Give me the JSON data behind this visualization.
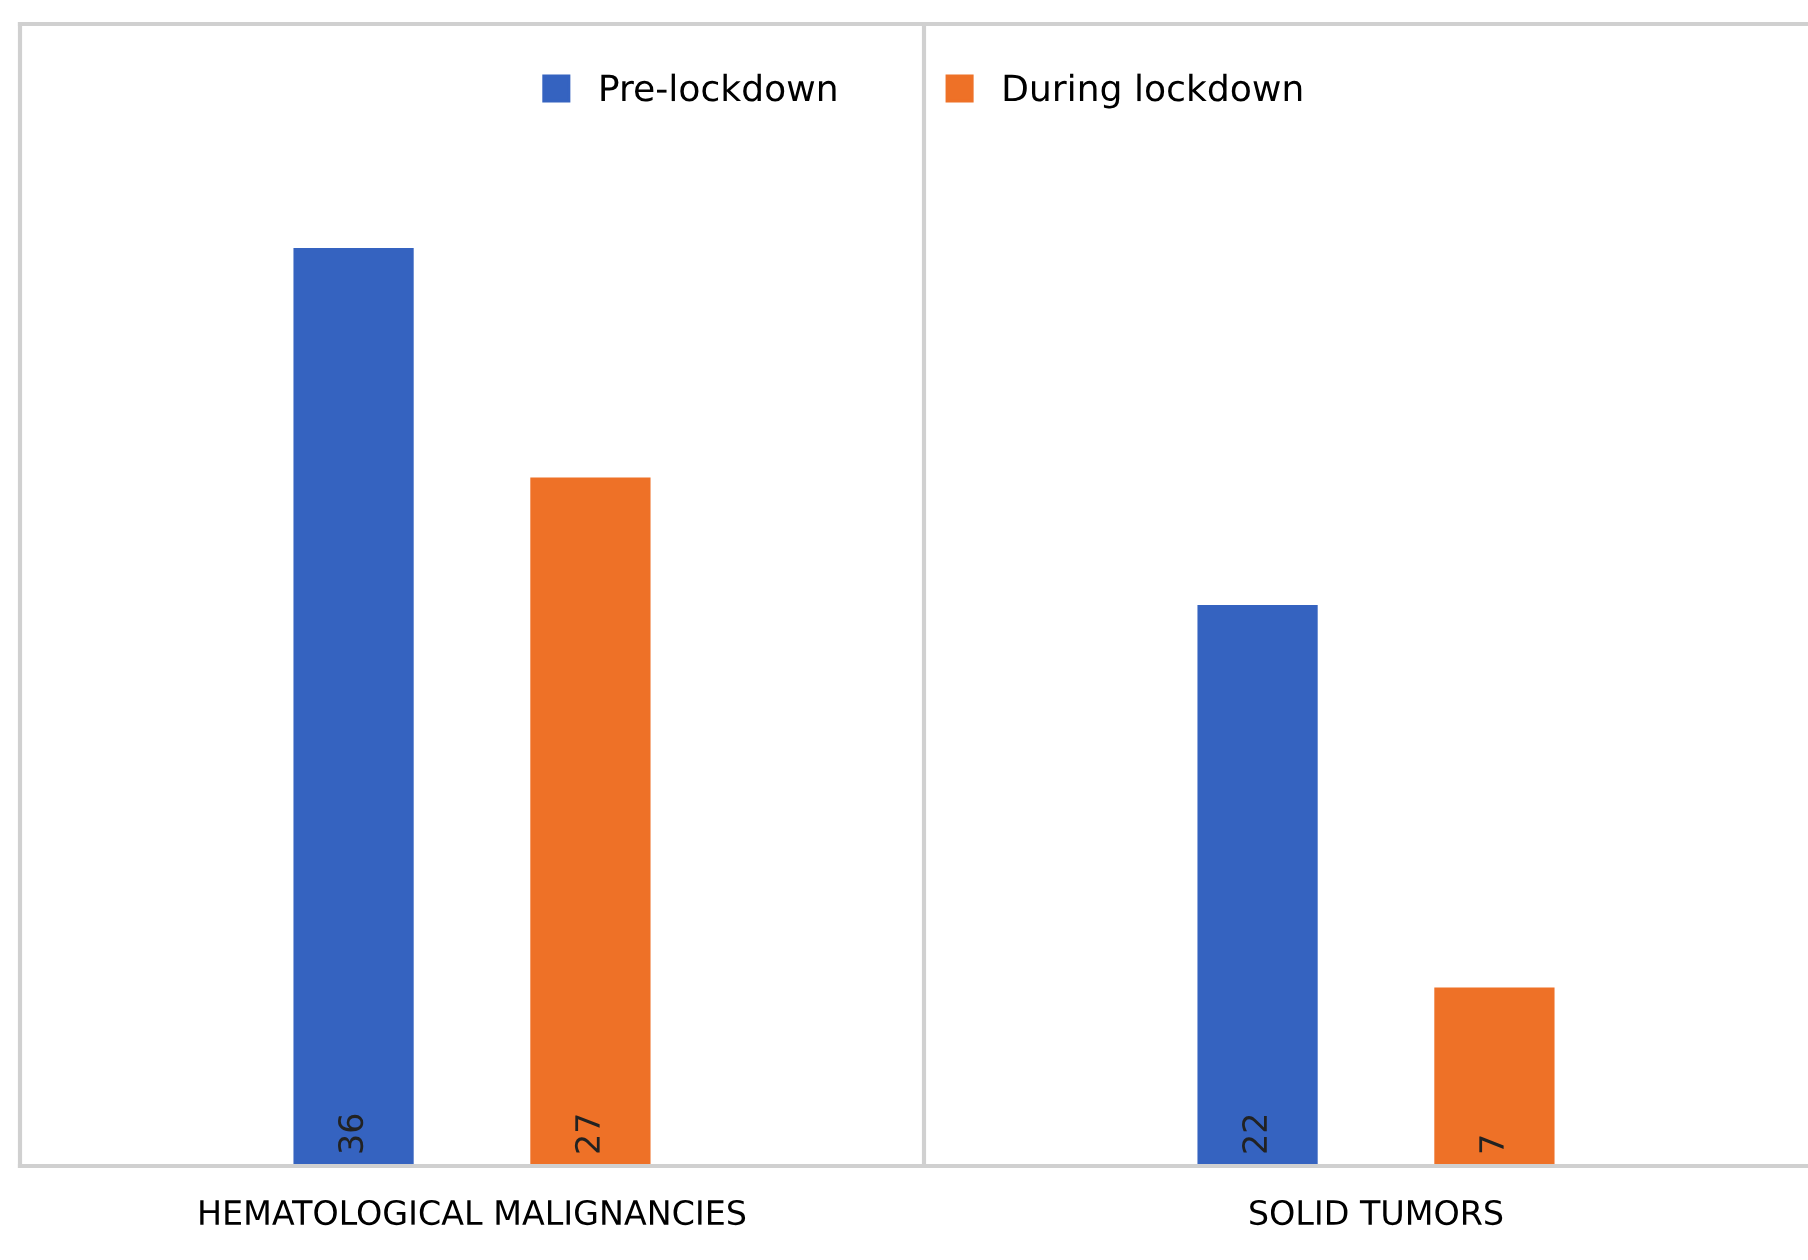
{
  "chart_data": {
    "type": "bar",
    "categories": [
      "HEMATOLOGICAL MALIGNANCIES",
      "SOLID TUMORS"
    ],
    "series": [
      {
        "name": "Pre-lockdown",
        "color": "#3563c0",
        "values": [
          36,
          22
        ]
      },
      {
        "name": "During lockdown",
        "color": "#ee7127",
        "values": [
          27,
          7
        ]
      }
    ],
    "data_labels": true,
    "legend": "top",
    "grid": false
  }
}
